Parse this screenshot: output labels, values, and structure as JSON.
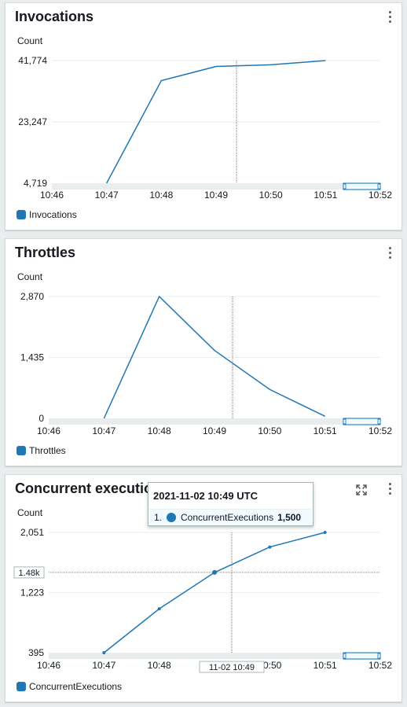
{
  "panels": [
    {
      "title": "Invocations",
      "unit": "Count",
      "legend": "Invocations",
      "chart_data": {
        "type": "line",
        "title": "Invocations",
        "ylabel": "Count",
        "x": [
          "10:46",
          "10:47",
          "10:48",
          "10:49",
          "10:50",
          "10:51",
          "10:52"
        ],
        "yticks": [
          "41,774",
          "23,247",
          "4,719"
        ],
        "ylim": [
          4719,
          41774
        ],
        "series": [
          {
            "name": "Invocations",
            "points": [
              [
                "10:47",
                4719
              ],
              [
                "10:48",
                35700
              ],
              [
                "10:49",
                40000
              ],
              [
                "10:50",
                40500
              ],
              [
                "10:51",
                41774
              ]
            ]
          }
        ],
        "grid": true,
        "legend_position": "bottom-left"
      }
    },
    {
      "title": "Throttles",
      "unit": "Count",
      "legend": "Throttles",
      "chart_data": {
        "type": "line",
        "title": "Throttles",
        "ylabel": "Count",
        "x": [
          "10:46",
          "10:47",
          "10:48",
          "10:49",
          "10:50",
          "10:51",
          "10:52"
        ],
        "yticks": [
          "2,870",
          "1,435",
          "0"
        ],
        "ylim": [
          0,
          2870
        ],
        "series": [
          {
            "name": "Throttles",
            "points": [
              [
                "10:47",
                0
              ],
              [
                "10:48",
                2870
              ],
              [
                "10:49",
                1600
              ],
              [
                "10:50",
                680
              ],
              [
                "10:51",
                50
              ]
            ]
          }
        ],
        "grid": true,
        "legend_position": "bottom-left"
      }
    },
    {
      "title": "Concurrent executions",
      "unit": "Count",
      "legend": "ConcurrentExecutions",
      "crosshair_y_label": "1.48k",
      "crosshair_x_label": "11-02 10:49",
      "chart_data": {
        "type": "line",
        "title": "Concurrent executions",
        "ylabel": "Count",
        "x": [
          "10:46",
          "10:47",
          "10:48",
          "10:49",
          "10:50",
          "10:51",
          "10:52"
        ],
        "yticks": [
          "2,051",
          "1,223",
          "395"
        ],
        "ylim": [
          395,
          2051
        ],
        "series": [
          {
            "name": "ConcurrentExecutions",
            "points": [
              [
                "10:47",
                395
              ],
              [
                "10:48",
                1000
              ],
              [
                "10:49",
                1500
              ],
              [
                "10:50",
                1850
              ],
              [
                "10:51",
                2051
              ]
            ]
          }
        ],
        "grid": true,
        "legend_position": "bottom-left"
      }
    }
  ],
  "tooltip": {
    "title": "2021-11-02 10:49 UTC",
    "index": "1.",
    "series": "ConcurrentExecutions",
    "value": "1,500"
  },
  "colors": {
    "series": "#1f77b4",
    "grid": "#eaeded",
    "axis": "#d5dbdb",
    "range": "#0073bb"
  },
  "icons": {
    "menu": "kebab-menu-icon",
    "expand": "expand-icon"
  }
}
